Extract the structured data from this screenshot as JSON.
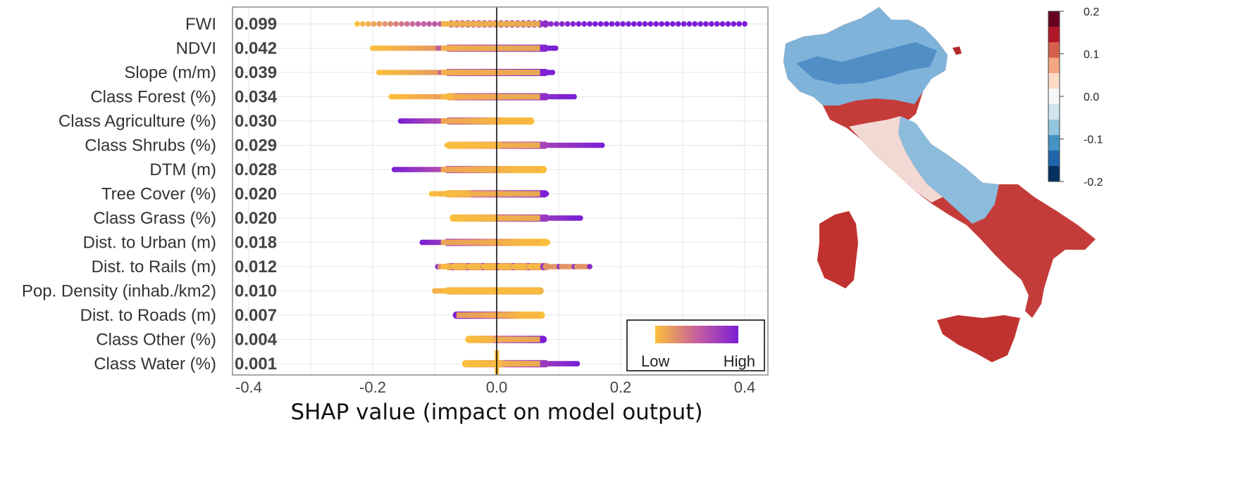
{
  "chart_data": [
    {
      "type": "scatter",
      "subtype": "shap-beeswarm",
      "xlabel": "SHAP value (impact on model output)",
      "xlim": [
        -0.43,
        0.43
      ],
      "xticks": [
        "-0.4",
        "-0.2",
        "0.0",
        "0.2",
        "0.4"
      ],
      "grid": true,
      "legend": {
        "position": "bottom-right",
        "low": "Low",
        "high": "High",
        "low_color": "#fbbf3a",
        "high_color": "#7a1fd6"
      },
      "features": [
        {
          "name": "FWI",
          "importance": "0.099",
          "min": -0.225,
          "max": 0.4,
          "color_trend": "increasing"
        },
        {
          "name": "NDVI",
          "importance": "0.042",
          "min": -0.2,
          "max": 0.095,
          "color_trend": "increasing"
        },
        {
          "name": "Slope (m/m)",
          "importance": "0.039",
          "min": -0.19,
          "max": 0.09,
          "color_trend": "increasing"
        },
        {
          "name": "Class Forest (%)",
          "importance": "0.034",
          "min": -0.17,
          "max": 0.125,
          "color_trend": "increasing"
        },
        {
          "name": "Class Agriculture (%)",
          "importance": "0.030",
          "min": -0.155,
          "max": 0.055,
          "color_trend": "decreasing"
        },
        {
          "name": "Class Shrubs (%)",
          "importance": "0.029",
          "min": -0.08,
          "max": 0.17,
          "color_trend": "increasing"
        },
        {
          "name": "DTM (m)",
          "importance": "0.028",
          "min": -0.165,
          "max": 0.075,
          "color_trend": "decreasing"
        },
        {
          "name": "Tree Cover (%)",
          "importance": "0.020",
          "min": -0.105,
          "max": 0.08,
          "color_trend": "increasing"
        },
        {
          "name": "Class Grass (%)",
          "importance": "0.020",
          "min": -0.07,
          "max": 0.135,
          "color_trend": "increasing"
        },
        {
          "name": "Dist. to Urban (m)",
          "importance": "0.018",
          "min": -0.12,
          "max": 0.082,
          "color_trend": "decreasing"
        },
        {
          "name": "Dist. to Rails (m)",
          "importance": "0.012",
          "min": -0.095,
          "max": 0.15,
          "color_trend": "mixed"
        },
        {
          "name": "Pop. Density (inhab./km2)",
          "importance": "0.010",
          "min": -0.1,
          "max": 0.07,
          "color_trend": "neutral"
        },
        {
          "name": "Dist. to Roads (m)",
          "importance": "0.007",
          "min": -0.065,
          "max": 0.072,
          "color_trend": "decreasing"
        },
        {
          "name": "Class Other (%)",
          "importance": "0.004",
          "min": -0.045,
          "max": 0.075,
          "color_trend": "increasing"
        },
        {
          "name": "Class Water (%)",
          "importance": "0.001",
          "min": -0.05,
          "max": 0.13,
          "color_trend": "increasing"
        }
      ]
    },
    {
      "type": "heatmap",
      "subtype": "choropleth-map",
      "colorbar_ticks": [
        "0.2",
        "0.1",
        "0.0",
        "-0.1",
        "-0.2"
      ],
      "colorbar_range": [
        -0.2,
        0.2
      ],
      "colors": [
        "#67001f",
        "#b2182b",
        "#d6604d",
        "#f4a582",
        "#fddbc7",
        "#f7f7f7",
        "#d1e5f0",
        "#92c5de",
        "#4393c3",
        "#2166ac",
        "#053061"
      ]
    }
  ]
}
